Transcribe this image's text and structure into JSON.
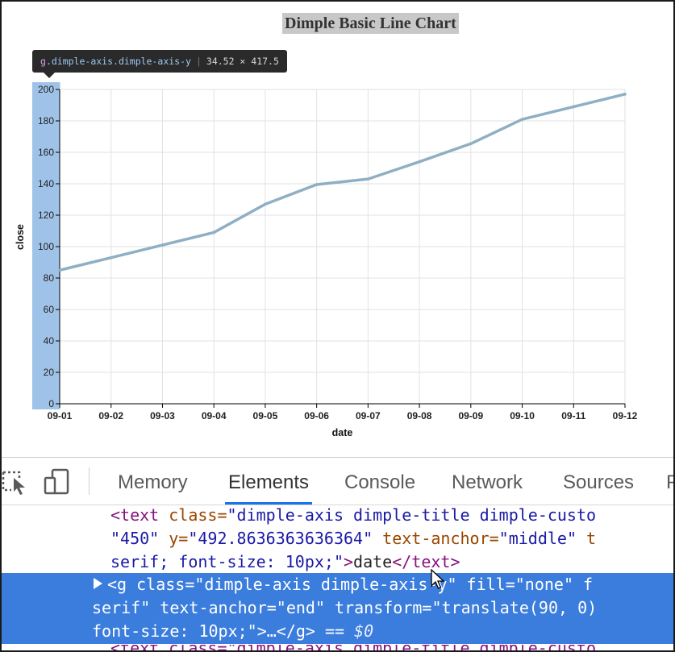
{
  "chart_data": {
    "type": "line",
    "title": "Dimple Basic Line Chart",
    "xlabel": "date",
    "ylabel": "close",
    "categories": [
      "09-01",
      "09-02",
      "09-03",
      "09-04",
      "09-05",
      "09-06",
      "09-07",
      "09-08",
      "09-09",
      "09-10",
      "09-11",
      "09-12"
    ],
    "values": [
      85,
      93,
      101,
      109,
      127,
      139.5,
      143,
      154,
      165.5,
      181,
      189,
      197
    ],
    "ylim": [
      0,
      200
    ],
    "yticks": [
      0,
      20,
      40,
      60,
      80,
      100,
      120,
      140,
      160,
      180,
      200
    ],
    "grid": true,
    "line_color": "#8fafc4"
  },
  "tooltip": {
    "tag": "g",
    "classes": ".dimple-axis.dimple-axis-y",
    "dims": "34.52 × 417.5"
  },
  "devtools": {
    "tabs": [
      {
        "label": "Memory"
      },
      {
        "label": "Elements"
      },
      {
        "label": "Console"
      },
      {
        "label": "Network"
      },
      {
        "label": "Sources"
      },
      {
        "label": "P"
      }
    ],
    "active_tab": "Elements",
    "code": {
      "l1_open": "<text ",
      "l1_attr1": "class=",
      "l1_val1": "\"dimple-axis dimple-title dimple-custo",
      "l2_val1": "\"450\" ",
      "l2_attr1": "y=",
      "l2_val2": "\"492.8636363636364\" ",
      "l2_attr2": "text-anchor=",
      "l2_val3": "\"middle\" ",
      "l2_attr3": "t",
      "l3_val": "serif; font-size: 10px;\"",
      "l3_close1": ">",
      "l3_text": "date",
      "l3_close2": "</text>",
      "s1_open": "<g ",
      "s1_attr1": "class=",
      "s1_val1": "\"dimple-axis dimple-axis-y\" ",
      "s1_attr2": "fill=",
      "s1_val2": "\"none\" ",
      "s1_attr3": "f",
      "s2_val1": "serif\" ",
      "s2_attr1": "text-anchor=",
      "s2_val2": "\"end\" ",
      "s2_attr2": "transform=",
      "s2_val3": "\"translate(90, 0)",
      "s3_val": "font-size: 10px;\"",
      "s3_rest": ">…</g>",
      "s3_eq": " == ",
      "s3_dollar": "$0",
      "l7_partial": "<text class=\"dimple-axis dimple-title dimple-custo"
    }
  }
}
